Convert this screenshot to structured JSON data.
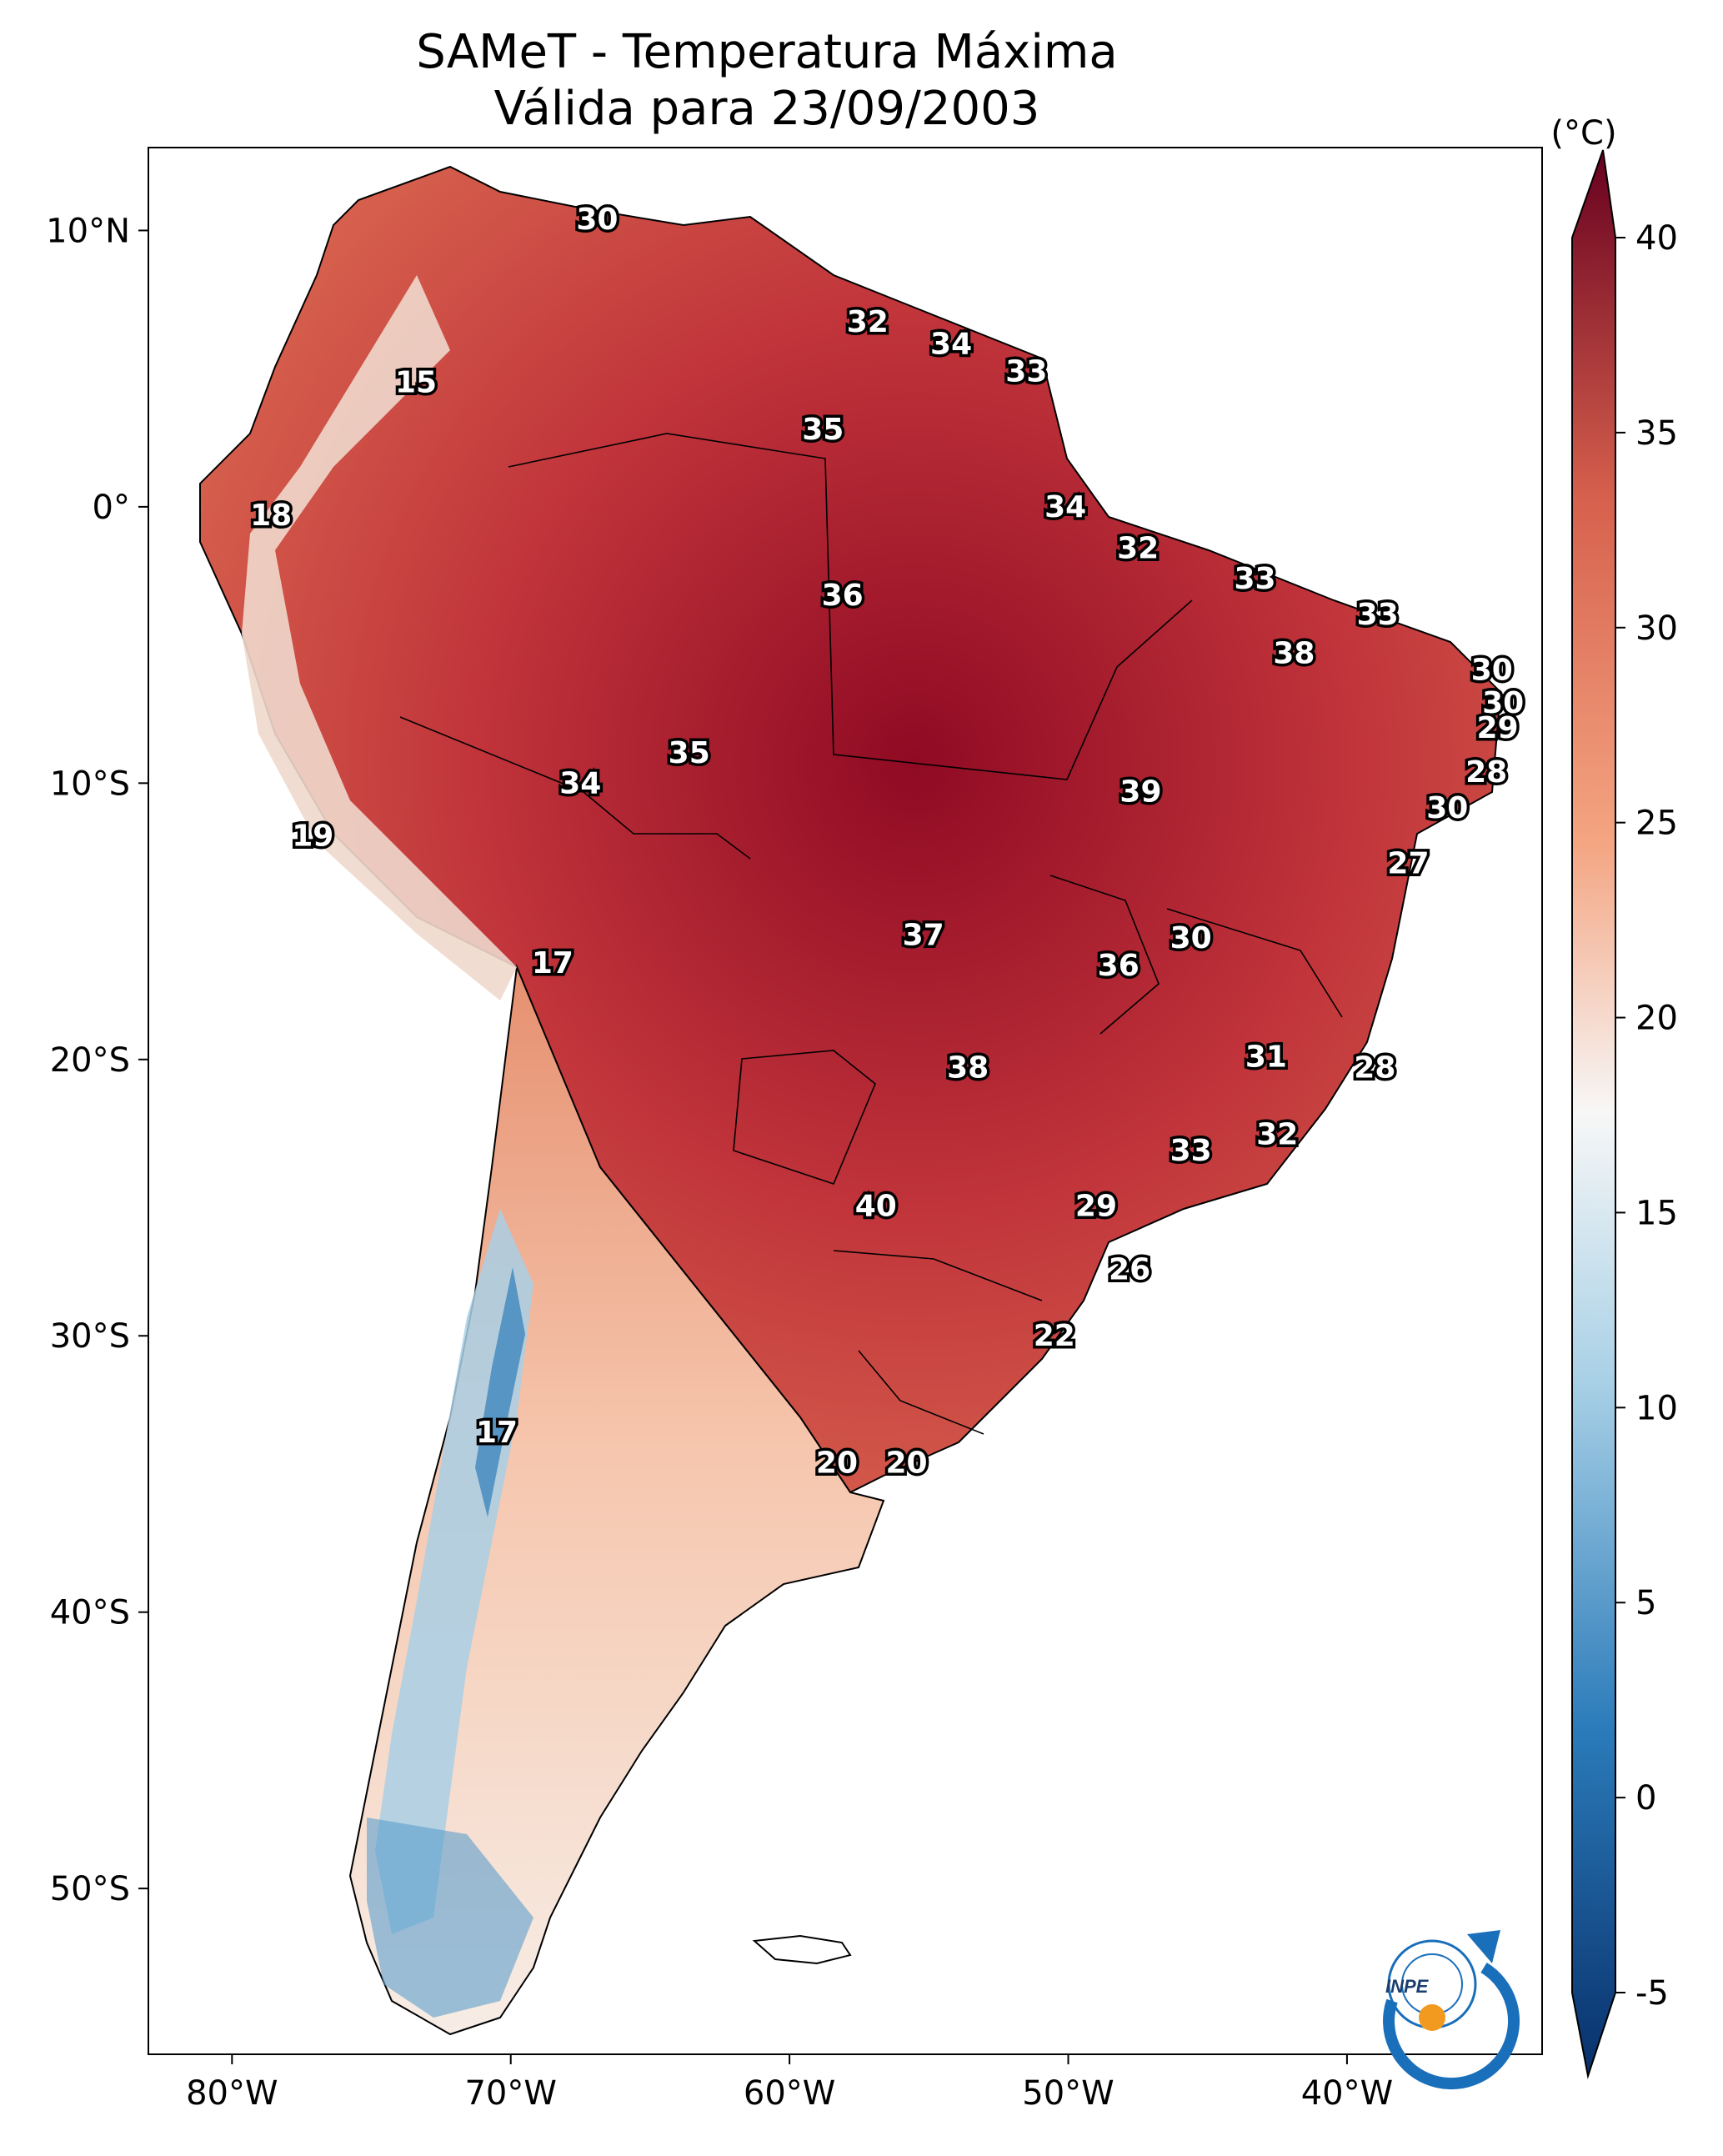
{
  "title": {
    "line1": "SAMeT - Temperatura Máxima",
    "line2": "Válida para 23/09/2003"
  },
  "colorbar": {
    "unit": "(°C)",
    "ticks": [
      "40",
      "35",
      "30",
      "25",
      "20",
      "15",
      "10",
      "5",
      "0",
      "-5"
    ],
    "range": [
      -5,
      40
    ],
    "extend": "both",
    "colormap": "RdBu_r",
    "colors": {
      "min": "#08306b",
      "low": "#2b7bba",
      "mid_low": "#a8d0e6",
      "neutral": "#f7f7f7",
      "mid_high": "#f4a582",
      "high": "#d6604d",
      "max": "#67001f"
    }
  },
  "axes": {
    "lon_ticks": [
      "80°W",
      "70°W",
      "60°W",
      "50°W",
      "40°W"
    ],
    "lat_ticks": [
      "10°N",
      "0°",
      "10°S",
      "20°S",
      "30°S",
      "40°S",
      "50°S"
    ],
    "lon_range": [
      -83,
      -33
    ],
    "lat_range": [
      -56,
      13
    ]
  },
  "logo": {
    "text": "INPE",
    "icon": "inpe-logo-icon"
  },
  "labels": [
    {
      "v": "30",
      "lon": -66.9,
      "lat": 10.4
    },
    {
      "v": "15",
      "lon": -73.4,
      "lat": 4.5
    },
    {
      "v": "32",
      "lon": -57.2,
      "lat": 6.7
    },
    {
      "v": "34",
      "lon": -54.2,
      "lat": 5.9
    },
    {
      "v": "33",
      "lon": -51.5,
      "lat": 4.9
    },
    {
      "v": "35",
      "lon": -58.8,
      "lat": 2.8
    },
    {
      "v": "18",
      "lon": -78.6,
      "lat": -0.3
    },
    {
      "v": "34",
      "lon": -50.1,
      "lat": 0.0
    },
    {
      "v": "32",
      "lon": -47.5,
      "lat": -1.5
    },
    {
      "v": "33",
      "lon": -43.3,
      "lat": -2.6
    },
    {
      "v": "36",
      "lon": -58.1,
      "lat": -3.2
    },
    {
      "v": "33",
      "lon": -38.9,
      "lat": -3.9
    },
    {
      "v": "38",
      "lon": -41.9,
      "lat": -5.3
    },
    {
      "v": "30",
      "lon": -34.8,
      "lat": -5.9
    },
    {
      "v": "30",
      "lon": -34.4,
      "lat": -7.1
    },
    {
      "v": "29",
      "lon": -34.6,
      "lat": -8.0
    },
    {
      "v": "35",
      "lon": -63.6,
      "lat": -8.9
    },
    {
      "v": "28",
      "lon": -35.0,
      "lat": -9.6
    },
    {
      "v": "34",
      "lon": -67.5,
      "lat": -10.0
    },
    {
      "v": "39",
      "lon": -47.4,
      "lat": -10.3
    },
    {
      "v": "30",
      "lon": -36.4,
      "lat": -10.9
    },
    {
      "v": "19",
      "lon": -77.1,
      "lat": -11.9
    },
    {
      "v": "27",
      "lon": -37.8,
      "lat": -12.9
    },
    {
      "v": "37",
      "lon": -55.2,
      "lat": -15.5
    },
    {
      "v": "30",
      "lon": -45.6,
      "lat": -15.6
    },
    {
      "v": "17",
      "lon": -68.5,
      "lat": -16.5
    },
    {
      "v": "36",
      "lon": -48.2,
      "lat": -16.6
    },
    {
      "v": "31",
      "lon": -42.9,
      "lat": -19.9
    },
    {
      "v": "38",
      "lon": -53.6,
      "lat": -20.3
    },
    {
      "v": "28",
      "lon": -39.0,
      "lat": -20.3
    },
    {
      "v": "32",
      "lon": -42.5,
      "lat": -22.7
    },
    {
      "v": "33",
      "lon": -45.6,
      "lat": -23.3
    },
    {
      "v": "40",
      "lon": -56.9,
      "lat": -25.3
    },
    {
      "v": "29",
      "lon": -49.0,
      "lat": -25.3
    },
    {
      "v": "26",
      "lon": -47.8,
      "lat": -27.6
    },
    {
      "v": "22",
      "lon": -50.5,
      "lat": -30.0
    },
    {
      "v": "17",
      "lon": -70.5,
      "lat": -33.5
    },
    {
      "v": "20",
      "lon": -58.3,
      "lat": -34.6
    },
    {
      "v": "20",
      "lon": -55.8,
      "lat": -34.6
    }
  ]
}
